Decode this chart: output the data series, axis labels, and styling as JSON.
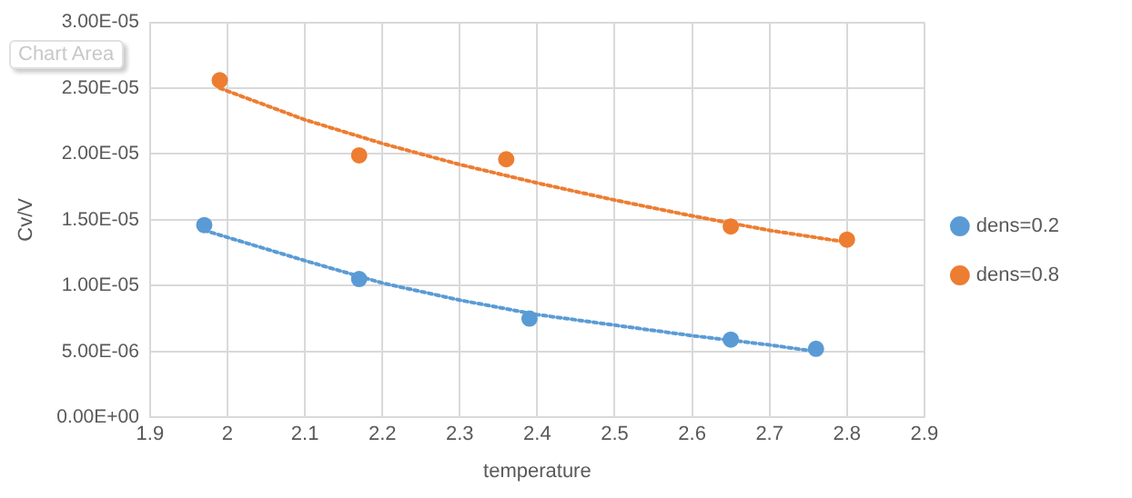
{
  "chart_data": {
    "type": "scatter",
    "xlabel": "temperature",
    "ylabel": "Cv/V",
    "xlim": [
      1.9,
      2.9
    ],
    "xticks": [
      1.9,
      2,
      2.1,
      2.2,
      2.3,
      2.4,
      2.5,
      2.6,
      2.7,
      2.8,
      2.9
    ],
    "ylim": [
      0,
      3e-05
    ],
    "yticks": [
      {
        "value": 0,
        "label": "0.00E+00"
      },
      {
        "value": 5e-06,
        "label": "5.00E-06"
      },
      {
        "value": 1e-05,
        "label": "1.00E-05"
      },
      {
        "value": 1.5e-05,
        "label": "1.50E-05"
      },
      {
        "value": 2e-05,
        "label": "2.00E-05"
      },
      {
        "value": 2.5e-05,
        "label": "2.50E-05"
      },
      {
        "value": 3e-05,
        "label": "3.00E-05"
      }
    ],
    "grid": true,
    "legend": "right",
    "marker": "circle",
    "annotations": [
      "Chart Area"
    ],
    "series": [
      {
        "name": "dens=0.2",
        "color": "#5b9bd5",
        "x": [
          1.97,
          2.17,
          2.39,
          2.65,
          2.76
        ],
        "values": [
          1.46e-05,
          1.05e-05,
          7.5e-06,
          5.9e-06,
          5.2e-06
        ]
      },
      {
        "name": "dens=0.8",
        "color": "#ed7d31",
        "x": [
          1.99,
          2.17,
          2.36,
          2.65,
          2.8
        ],
        "values": [
          2.56e-05,
          1.99e-05,
          1.96e-05,
          1.45e-05,
          1.35e-05
        ]
      },
      {
        "type": "line",
        "color": "#5b9bd5",
        "line_style": "dotted",
        "marker": "none",
        "x": [
          1.97,
          2.1,
          2.2,
          2.3,
          2.4,
          2.5,
          2.6,
          2.7,
          2.76
        ],
        "values": [
          1.42e-05,
          1.19e-05,
          1.02e-05,
          8.9e-06,
          7.8e-06,
          7e-06,
          6.2e-06,
          5.5e-06,
          5e-06
        ]
      },
      {
        "type": "line",
        "color": "#ed7d31",
        "line_style": "dotted",
        "marker": "none",
        "x": [
          1.99,
          2.1,
          2.2,
          2.3,
          2.4,
          2.5,
          2.6,
          2.7,
          2.8
        ],
        "values": [
          2.5e-05,
          2.26e-05,
          2.08e-05,
          1.92e-05,
          1.78e-05,
          1.65e-05,
          1.53e-05,
          1.42e-05,
          1.33e-05
        ]
      }
    ]
  }
}
